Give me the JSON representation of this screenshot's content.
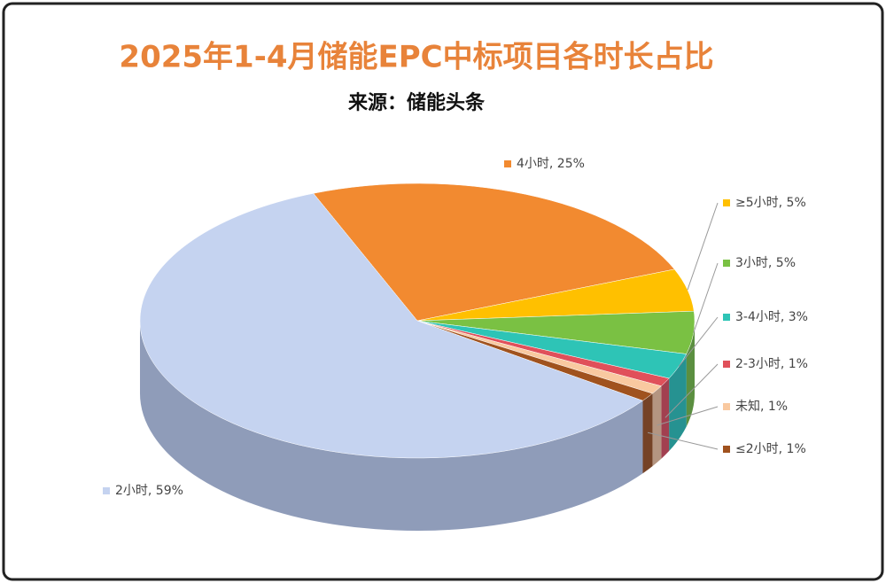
{
  "chart_data": {
    "type": "pie",
    "title": "2025年1-4月储能EPC中标项目各时长占比",
    "subtitle": "来源：储能头条",
    "values": [
      25,
      5,
      5,
      3,
      1,
      1,
      1,
      59
    ],
    "value_labels": [
      "4小时, 25%",
      "≥5小时, 5%",
      "3小时, 5%",
      "3-4小时, 3%",
      "2-3小时, 1%",
      "未知, 1%",
      "≤2小时, 1%",
      "2小时, 59%"
    ],
    "colors": [
      "#f28a30",
      "#ffc000",
      "#7ac143",
      "#2ec4b6",
      "#e0505a",
      "#f9c9a0",
      "#a0521e",
      "#c5d3f0"
    ]
  }
}
